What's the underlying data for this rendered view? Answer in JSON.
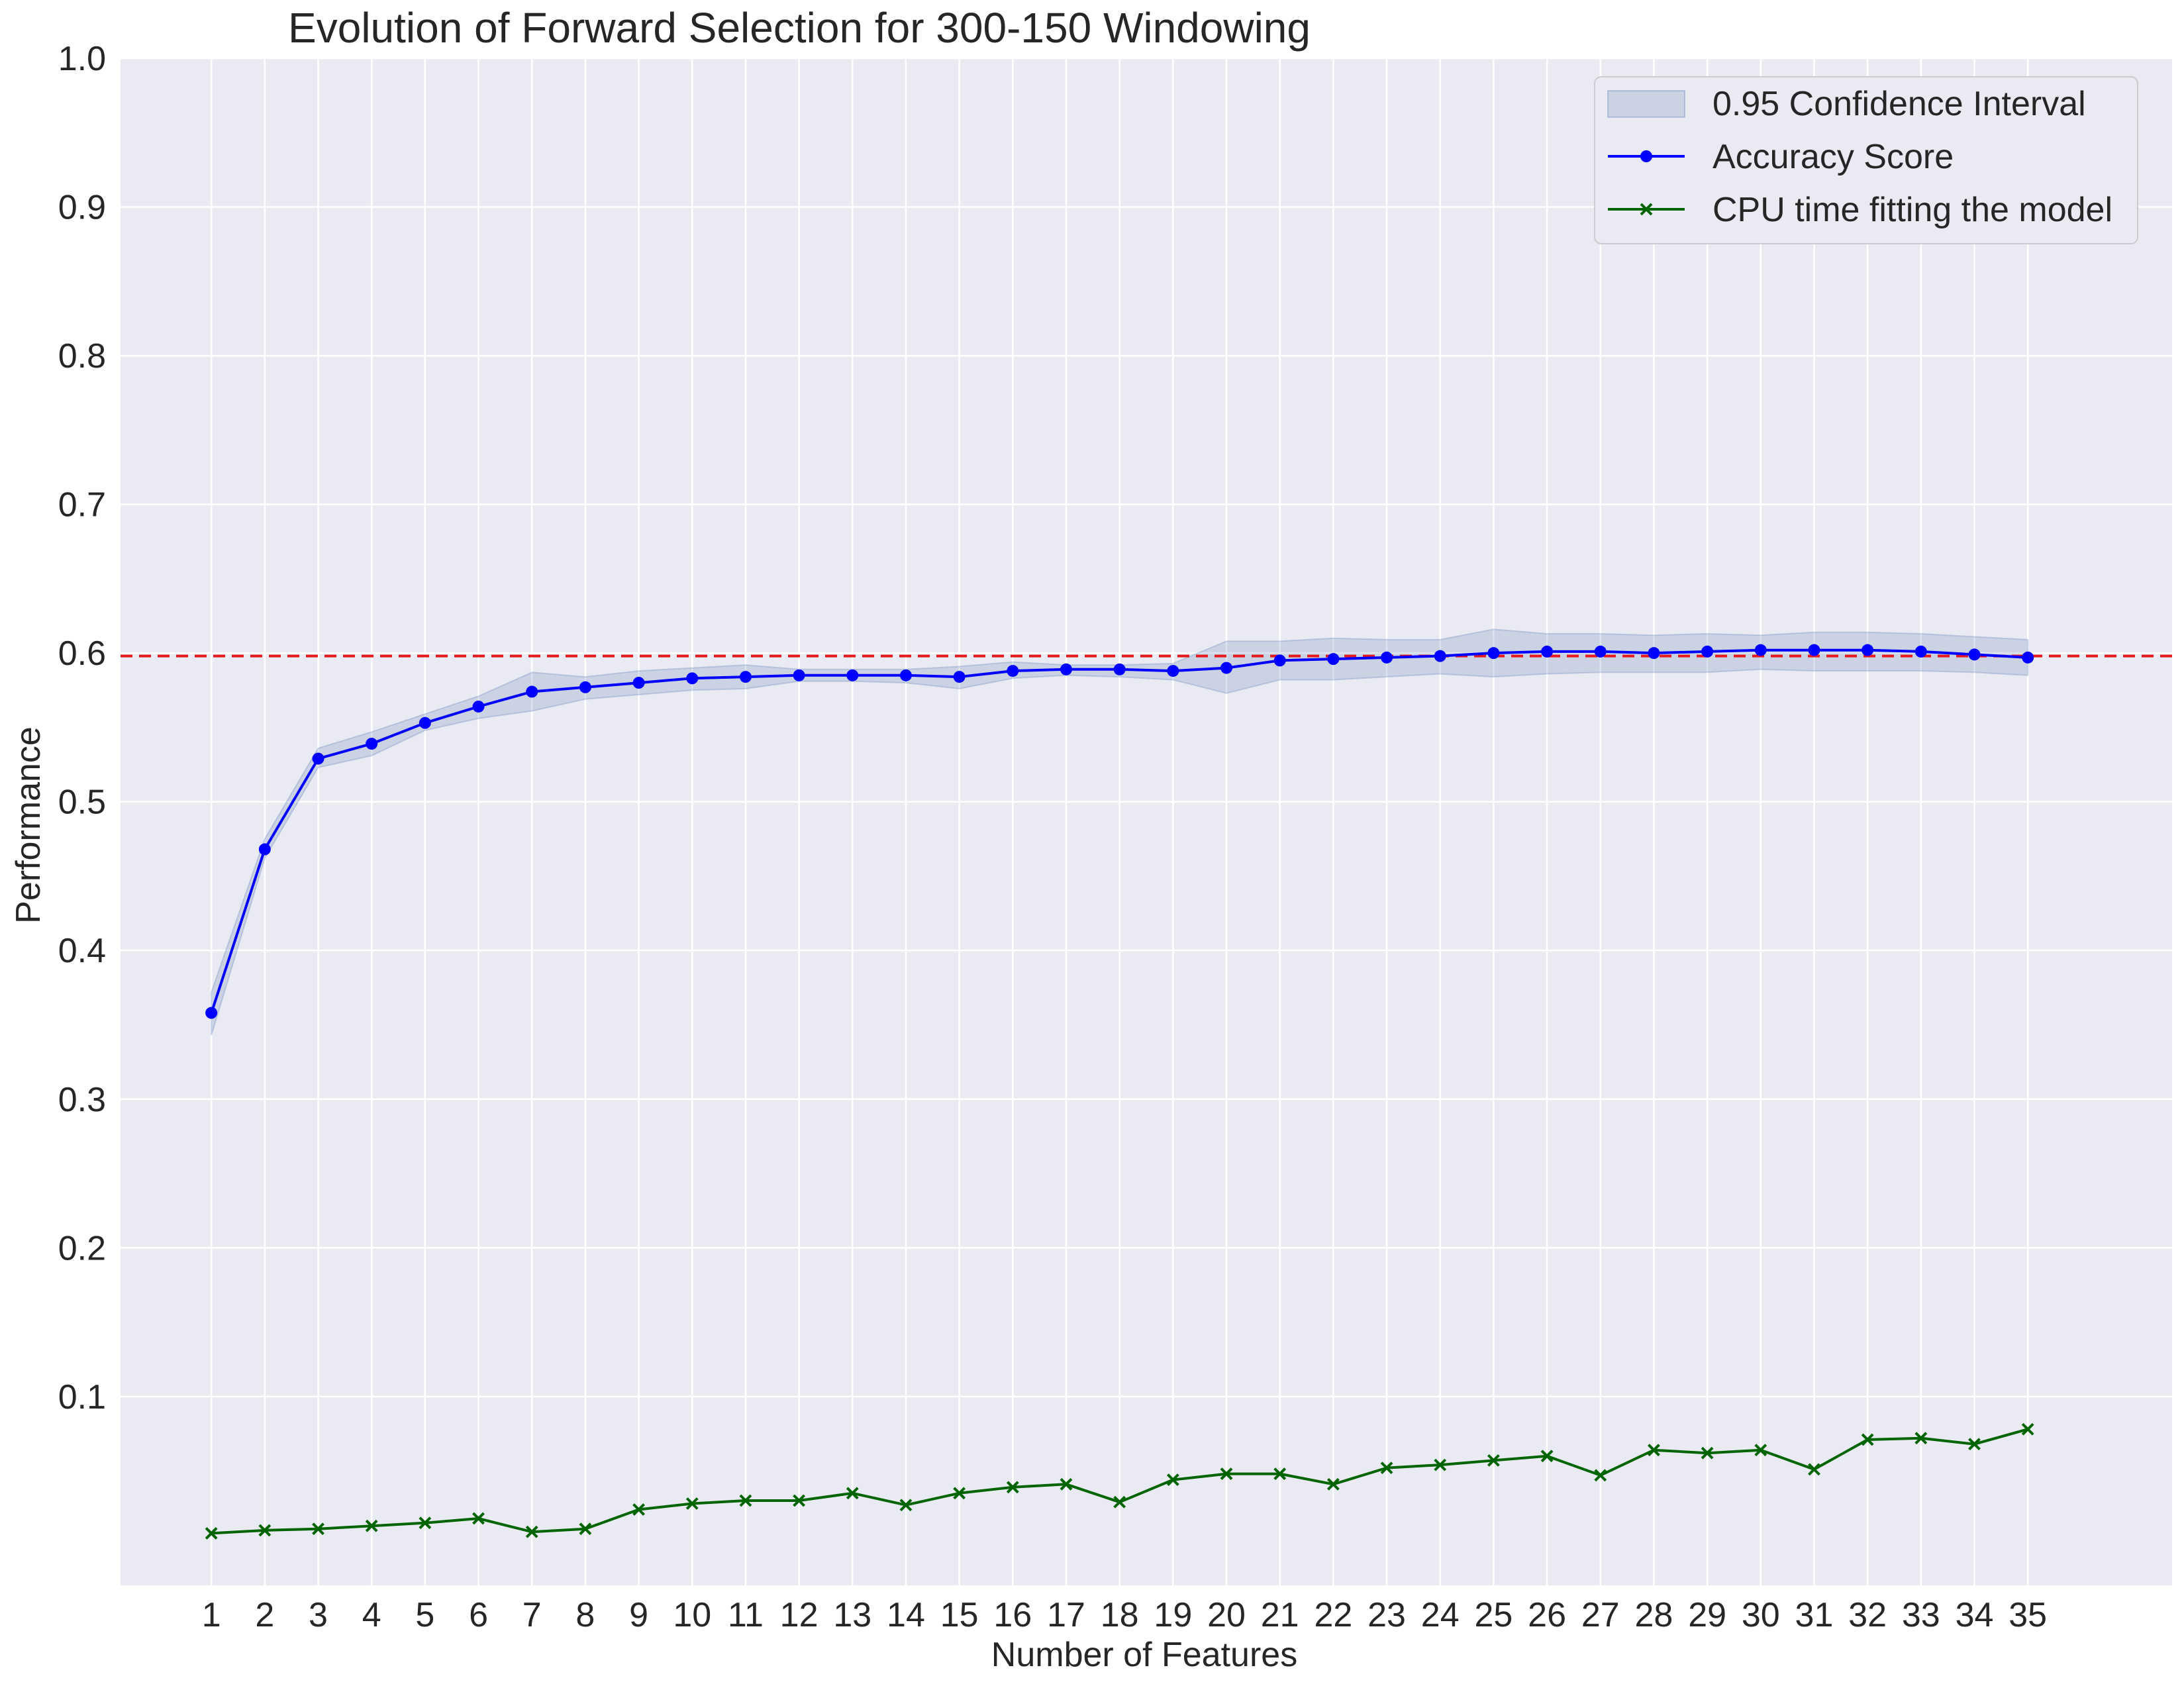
{
  "chart_data": {
    "type": "line",
    "title": "Evolution of Forward Selection for 300-150 Windowing",
    "xlabel": "Number of Features",
    "ylabel": "Performance",
    "x": [
      1,
      2,
      3,
      4,
      5,
      6,
      7,
      8,
      9,
      10,
      11,
      12,
      13,
      14,
      15,
      16,
      17,
      18,
      19,
      20,
      21,
      22,
      23,
      24,
      25,
      26,
      27,
      28,
      29,
      30,
      31,
      32,
      33,
      34,
      35
    ],
    "xlim": [
      -0.7,
      37.7
    ],
    "ylim": [
      -0.027,
      1.0
    ],
    "yticks": [
      0.1,
      0.2,
      0.3,
      0.4,
      0.5,
      0.6,
      0.7,
      0.8,
      0.9,
      1.0
    ],
    "ytick_labels": [
      "0.1",
      "0.2",
      "0.3",
      "0.4",
      "0.5",
      "0.6",
      "0.7",
      "0.8",
      "0.9",
      "1.0"
    ],
    "xtick_labels": [
      "1",
      "2",
      "3",
      "4",
      "5",
      "6",
      "7",
      "8",
      "9",
      "10",
      "11",
      "12",
      "13",
      "14",
      "15",
      "16",
      "17",
      "18",
      "19",
      "20",
      "21",
      "22",
      "23",
      "24",
      "25",
      "26",
      "27",
      "28",
      "29",
      "30",
      "31",
      "32",
      "33",
      "34",
      "35"
    ],
    "grid": true,
    "legend_position": "top-right",
    "reference_line": {
      "y": 0.598,
      "color": "#e41a1c",
      "style": "dashed"
    },
    "confidence_interval": {
      "name": "0.95 Confidence Interval",
      "color": "#4c72b0",
      "lower": [
        0.343,
        0.462,
        0.523,
        0.531,
        0.548,
        0.556,
        0.561,
        0.569,
        0.572,
        0.575,
        0.576,
        0.581,
        0.581,
        0.58,
        0.576,
        0.583,
        0.585,
        0.584,
        0.582,
        0.573,
        0.582,
        0.582,
        0.584,
        0.586,
        0.584,
        0.586,
        0.587,
        0.587,
        0.587,
        0.589,
        0.588,
        0.588,
        0.588,
        0.587,
        0.585
      ],
      "upper": [
        0.372,
        0.475,
        0.536,
        0.547,
        0.559,
        0.571,
        0.587,
        0.584,
        0.588,
        0.59,
        0.592,
        0.589,
        0.589,
        0.589,
        0.591,
        0.594,
        0.592,
        0.592,
        0.593,
        0.608,
        0.608,
        0.61,
        0.609,
        0.609,
        0.616,
        0.613,
        0.613,
        0.612,
        0.613,
        0.612,
        0.614,
        0.614,
        0.613,
        0.611,
        0.609
      ]
    },
    "series": [
      {
        "name": "Accuracy Score",
        "color": "#0000ff",
        "marker": "circle",
        "values": [
          0.358,
          0.468,
          0.529,
          0.539,
          0.553,
          0.564,
          0.574,
          0.577,
          0.58,
          0.583,
          0.584,
          0.585,
          0.585,
          0.585,
          0.584,
          0.588,
          0.589,
          0.589,
          0.588,
          0.59,
          0.595,
          0.596,
          0.597,
          0.598,
          0.6,
          0.601,
          0.601,
          0.6,
          0.601,
          0.602,
          0.602,
          0.602,
          0.601,
          0.599,
          0.597
        ]
      },
      {
        "name": "CPU time fitting the model",
        "color": "#006400",
        "marker": "x",
        "values": [
          0.008,
          0.01,
          0.011,
          0.013,
          0.015,
          0.018,
          0.009,
          0.011,
          0.024,
          0.028,
          0.03,
          0.03,
          0.035,
          0.027,
          0.035,
          0.039,
          0.041,
          0.029,
          0.044,
          0.048,
          0.048,
          0.041,
          0.052,
          0.054,
          0.057,
          0.06,
          0.047,
          0.064,
          0.062,
          0.064,
          0.051,
          0.071,
          0.072,
          0.068,
          0.078
        ]
      }
    ]
  }
}
